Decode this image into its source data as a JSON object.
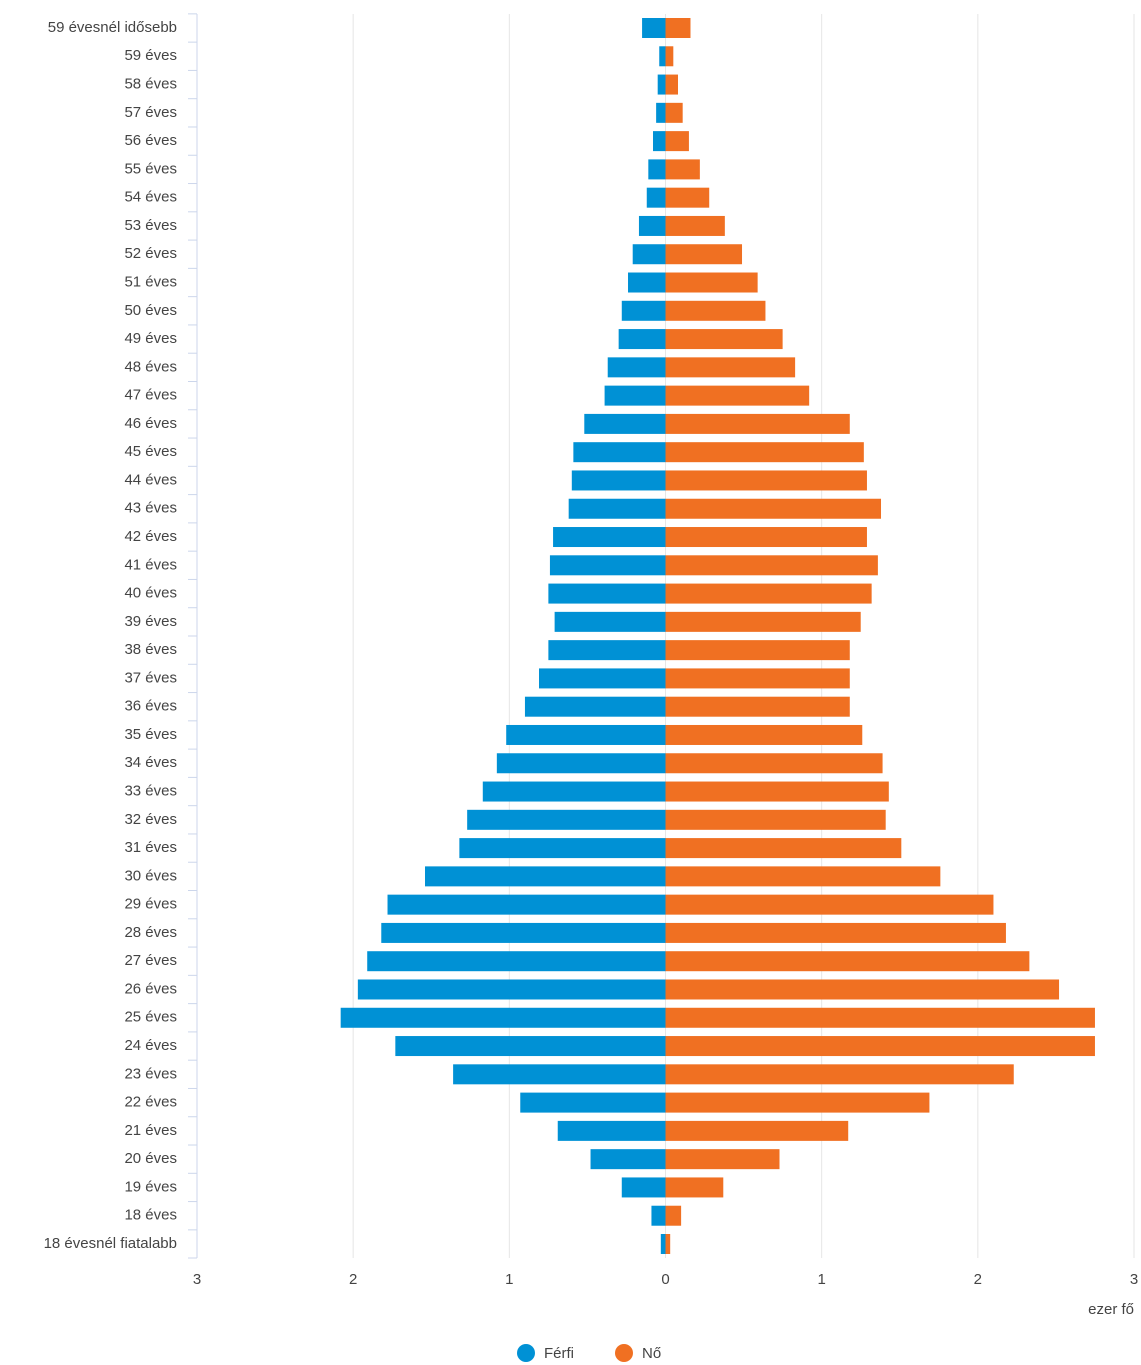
{
  "chart_data": {
    "type": "pyramid",
    "categories": [
      "59 évesnél idősebb",
      "59 éves",
      "58 éves",
      "57 éves",
      "56 éves",
      "55 éves",
      "54 éves",
      "53 éves",
      "52 éves",
      "51 éves",
      "50 éves",
      "49 éves",
      "48 éves",
      "47 éves",
      "46 éves",
      "45 éves",
      "44 éves",
      "43 éves",
      "42 éves",
      "41 éves",
      "40 éves",
      "39 éves",
      "38 éves",
      "37 éves",
      "36 éves",
      "35 éves",
      "34 éves",
      "33 éves",
      "32 éves",
      "31 éves",
      "30 éves",
      "29 éves",
      "28 éves",
      "27 éves",
      "26 éves",
      "25 éves",
      "24 éves",
      "23 éves",
      "22 éves",
      "21 éves",
      "20 éves",
      "19 éves",
      "18 éves",
      "18 évesnél fiatalabb"
    ],
    "series": [
      {
        "name": "Férfi",
        "color": "#0091d5",
        "values": [
          -0.15,
          -0.04,
          -0.05,
          -0.06,
          -0.08,
          -0.11,
          -0.12,
          -0.17,
          -0.21,
          -0.24,
          -0.28,
          -0.3,
          -0.37,
          -0.39,
          -0.52,
          -0.59,
          -0.6,
          -0.62,
          -0.72,
          -0.74,
          -0.75,
          -0.71,
          -0.75,
          -0.81,
          -0.9,
          -1.02,
          -1.08,
          -1.17,
          -1.27,
          -1.32,
          -1.54,
          -1.78,
          -1.82,
          -1.91,
          -1.97,
          -2.08,
          -1.73,
          -1.36,
          -0.93,
          -0.69,
          -0.48,
          -0.28,
          -0.09,
          -0.03
        ]
      },
      {
        "name": "Nő",
        "color": "#f07022",
        "values": [
          0.16,
          0.05,
          0.08,
          0.11,
          0.15,
          0.22,
          0.28,
          0.38,
          0.49,
          0.59,
          0.64,
          0.75,
          0.83,
          0.92,
          1.18,
          1.27,
          1.29,
          1.38,
          1.29,
          1.36,
          1.32,
          1.25,
          1.18,
          1.18,
          1.18,
          1.26,
          1.39,
          1.43,
          1.41,
          1.51,
          1.76,
          2.1,
          2.18,
          2.33,
          2.52,
          2.75,
          2.75,
          2.23,
          1.69,
          1.17,
          0.73,
          0.37,
          0.1,
          0.03
        ]
      }
    ],
    "xlim": [
      -3,
      3
    ],
    "xticks": [
      {
        "value": -3,
        "label": "3"
      },
      {
        "value": -2,
        "label": "2"
      },
      {
        "value": -1,
        "label": "1"
      },
      0,
      1,
      2,
      3
    ],
    "x_label": "ezer fő",
    "grid": true
  }
}
